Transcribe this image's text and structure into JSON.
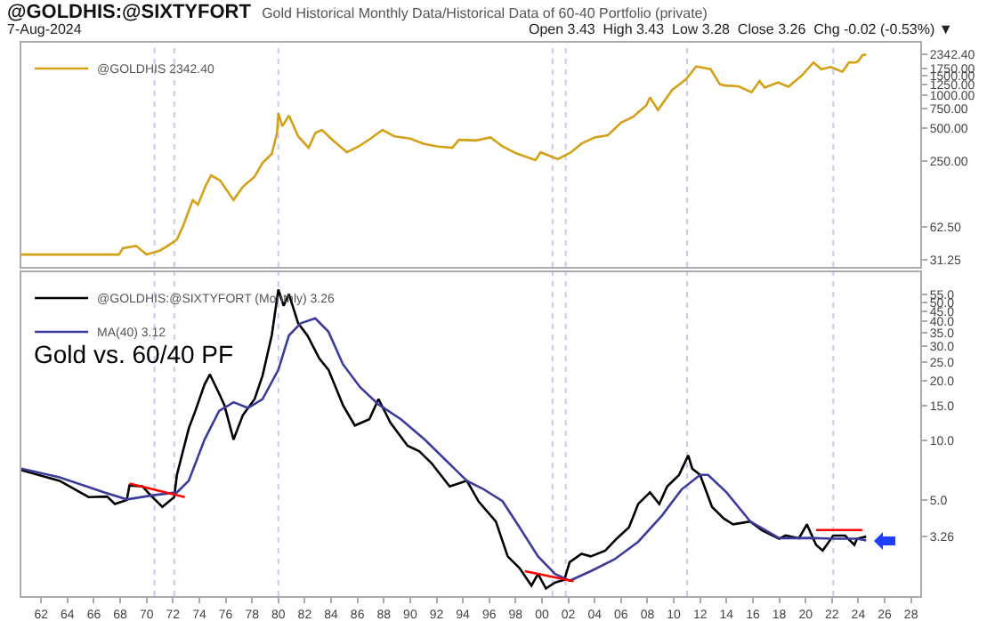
{
  "chart_data": [
    {
      "type": "line",
      "title": "@GOLDHIS:@SIXTYFORT",
      "subtitle": "Gold Historical Monthly Data/Historical Data of 60-40 Portfolio (private)",
      "annotations": [
        "7-Aug-2024",
        "Open 3.43  High 3.43  Low 3.28  Close 3.26  Chg -0.02 (-0.53%) ▼"
      ],
      "log": "y",
      "legend": "top left",
      "tick_labels": "y",
      "xlim": [
        1960.5,
        2028.7
      ],
      "ylim": [
        27,
        3000
      ],
      "yticks": [
        31.25,
        {
          "value": 62.5,
          "label": "62.50"
        },
        {
          "value": 250,
          "label": "250.00"
        },
        {
          "value": 500,
          "label": "500.00"
        },
        {
          "value": 750,
          "label": "750.00"
        },
        {
          "value": 1000,
          "label": "1000.00"
        },
        {
          "value": 1250,
          "label": "1250.00"
        },
        {
          "value": 1500,
          "label": "1500.00"
        },
        {
          "value": 1750,
          "label": "1750.00"
        },
        {
          "value": 2342.4,
          "label": "2342.40"
        }
      ],
      "ref_lines": [
        {
          "axis": "x",
          "value": 1970.6,
          "color": "#c8c8f0",
          "line_style": "dotted"
        },
        {
          "axis": "x",
          "value": 1972.1,
          "color": "#c8c8f0",
          "line_style": "dotted"
        },
        {
          "axis": "x",
          "value": 1980,
          "color": "#c8c8f0",
          "line_style": "dotted"
        },
        {
          "axis": "x",
          "value": 2000.8,
          "color": "#c8c8f0",
          "line_style": "dotted"
        },
        {
          "axis": "x",
          "value": 2001.8,
          "color": "#c8c8f0",
          "line_style": "dotted"
        },
        {
          "axis": "x",
          "value": 2011,
          "color": "#c8c8f0",
          "line_style": "dotted"
        },
        {
          "axis": "x",
          "value": 2022.1,
          "color": "#c8c8f0",
          "line_style": "dotted"
        }
      ],
      "series": [
        {
          "name": "@GOLDHIS 2342.40",
          "color": "#d4a017",
          "x": [
            1960.5,
            1967.9,
            1968.2,
            1969.2,
            1970.0,
            1971.0,
            1971.6,
            1972.3,
            1972.8,
            1973.5,
            1973.9,
            1974.5,
            1974.9,
            1975.6,
            1976.6,
            1977.3,
            1978.2,
            1978.8,
            1979.5,
            1979.9,
            1980.0,
            1980.3,
            1980.8,
            1981.5,
            1982.3,
            1982.8,
            1983.3,
            1984.2,
            1985.2,
            1986.1,
            1987.0,
            1987.9,
            1988.8,
            1990.0,
            1991.0,
            1992.0,
            1993.2,
            1993.7,
            1995.0,
            1996.1,
            1997.0,
            1998.0,
            1999.5,
            1999.9,
            2001.2,
            2002.2,
            2003.0,
            2004.0,
            2005.0,
            2006.0,
            2006.9,
            2007.9,
            2008.2,
            2008.8,
            2009.9,
            2010.9,
            2011.7,
            2012.8,
            2013.5,
            2013.9,
            2014.9,
            2015.9,
            2016.5,
            2016.9,
            2017.9,
            2018.7,
            2019.7,
            2020.6,
            2021.2,
            2021.9,
            2022.8,
            2023.3,
            2023.8,
            2024.0,
            2024.3,
            2024.6
          ],
          "values": [
            35,
            35,
            40,
            42,
            35,
            38,
            42,
            48,
            65,
            110,
            100,
            150,
            185,
            165,
            110,
            145,
            180,
            240,
            290,
            450,
            680,
            520,
            650,
            420,
            330,
            450,
            480,
            380,
            300,
            340,
            400,
            480,
            420,
            400,
            360,
            340,
            330,
            390,
            385,
            410,
            340,
            295,
            255,
            300,
            260,
            300,
            360,
            410,
            430,
            560,
            630,
            800,
            950,
            730,
            1120,
            1380,
            1820,
            1720,
            1250,
            1220,
            1200,
            1060,
            1340,
            1170,
            1300,
            1190,
            1500,
            1980,
            1720,
            1800,
            1630,
            1990,
            1980,
            2040,
            2300,
            2342.4
          ]
        }
      ]
    },
    {
      "type": "line",
      "annotations": [
        "Gold vs. 60/40 PF"
      ],
      "log": "y",
      "legend": "top left",
      "xlim": [
        1960.5,
        2028.7
      ],
      "ylim": [
        1.63,
        71
      ],
      "xticks": [
        {
          "value": 1962,
          "label": "62"
        },
        {
          "value": 1964,
          "label": "64"
        },
        {
          "value": 1966,
          "label": "66"
        },
        {
          "value": 1968,
          "label": "68"
        },
        {
          "value": 1970,
          "label": "70"
        },
        {
          "value": 1972,
          "label": "72"
        },
        {
          "value": 1974,
          "label": "74"
        },
        {
          "value": 1976,
          "label": "76"
        },
        {
          "value": 1978,
          "label": "78"
        },
        {
          "value": 1980,
          "label": "80"
        },
        {
          "value": 1982,
          "label": "82"
        },
        {
          "value": 1984,
          "label": "84"
        },
        {
          "value": 1986,
          "label": "86"
        },
        {
          "value": 1988,
          "label": "88"
        },
        {
          "value": 1990,
          "label": "90"
        },
        {
          "value": 1992,
          "label": "92"
        },
        {
          "value": 1994,
          "label": "94"
        },
        {
          "value": 1996,
          "label": "96"
        },
        {
          "value": 1998,
          "label": "98"
        },
        {
          "value": 2000,
          "label": "00"
        },
        {
          "value": 2002,
          "label": "02"
        },
        {
          "value": 2004,
          "label": "04"
        },
        {
          "value": 2006,
          "label": "06"
        },
        {
          "value": 2008,
          "label": "08"
        },
        {
          "value": 2010,
          "label": "10"
        },
        {
          "value": 2012,
          "label": "12"
        },
        {
          "value": 2014,
          "label": "14"
        },
        {
          "value": 2016,
          "label": "16"
        },
        {
          "value": 2018,
          "label": "18"
        },
        {
          "value": 2020,
          "label": "20"
        },
        {
          "value": 2022,
          "label": "22"
        },
        {
          "value": 2024,
          "label": "24"
        },
        {
          "value": 2026,
          "label": "26"
        },
        {
          "value": 2028,
          "label": "28"
        }
      ],
      "yticks": [
        {
          "value": 3.26,
          "label": "3.26"
        },
        {
          "value": 5,
          "label": "5.0"
        },
        {
          "value": 10,
          "label": "10.0"
        },
        {
          "value": 15,
          "label": "15.0"
        },
        {
          "value": 20,
          "label": "20.0"
        },
        {
          "value": 25,
          "label": "25.0"
        },
        {
          "value": 30,
          "label": "30.0"
        },
        {
          "value": 35,
          "label": "35.0"
        },
        {
          "value": 40,
          "label": "40.0"
        },
        {
          "value": 45,
          "label": "45.0"
        },
        {
          "value": 50,
          "label": "50.0"
        },
        {
          "value": 55,
          "label": "55.0"
        }
      ],
      "ref_lines": [
        {
          "axis": "x",
          "value": 1970.6,
          "color": "#c8c8f0",
          "line_style": "dotted"
        },
        {
          "axis": "x",
          "value": 1972.1,
          "color": "#c8c8f0",
          "line_style": "dotted"
        },
        {
          "axis": "x",
          "value": 1980,
          "color": "#c8c8f0",
          "line_style": "dotted"
        },
        {
          "axis": "x",
          "value": 2000.8,
          "color": "#c8c8f0",
          "line_style": "dotted"
        },
        {
          "axis": "x",
          "value": 2001.8,
          "color": "#c8c8f0",
          "line_style": "dotted"
        },
        {
          "axis": "x",
          "value": 2011,
          "color": "#c8c8f0",
          "line_style": "dotted"
        },
        {
          "axis": "x",
          "value": 2022.1,
          "color": "#c8c8f0",
          "line_style": "dotted"
        }
      ],
      "series": [
        {
          "name": "@GOLDHIS:@SIXTYFORT (Monthly) 3.26",
          "color": "#000000",
          "x": [
            1960.5,
            1963.4,
            1965.6,
            1967.0,
            1967.6,
            1968.5,
            1968.7,
            1969.7,
            1970.3,
            1971.2,
            1972.1,
            1972.3,
            1973.2,
            1973.7,
            1974.4,
            1974.8,
            1975.5,
            1975.9,
            1976.6,
            1977.3,
            1978.2,
            1978.8,
            1979.5,
            1980.0,
            1980.4,
            1980.8,
            1981.5,
            1982.2,
            1983.1,
            1983.8,
            1984.9,
            1985.8,
            1986.9,
            1987.6,
            1988.5,
            1989.8,
            1990.7,
            1991.6,
            1993.0,
            1994.3,
            1995.2,
            1996.5,
            1997.4,
            1998.3,
            1999.2,
            1999.7,
            2000.3,
            2001.0,
            2001.7,
            2002.1,
            2003.0,
            2003.7,
            2004.8,
            2005.7,
            2006.6,
            2007.3,
            2008.2,
            2008.9,
            2009.5,
            2010.4,
            2011.1,
            2011.4,
            2012.0,
            2012.9,
            2013.8,
            2014.5,
            2015.8,
            2016.7,
            2018.0,
            2018.5,
            2019.5,
            2020.1,
            2020.8,
            2021.3,
            2022.1,
            2023.0,
            2023.7,
            2023.9,
            2024.6
          ],
          "values": [
            7.07,
            6.25,
            5.17,
            5.2,
            4.77,
            5.0,
            5.92,
            5.85,
            5.28,
            4.61,
            5.17,
            6.69,
            11.5,
            14.1,
            19.2,
            21.6,
            17.3,
            15.1,
            10.1,
            13.4,
            16.2,
            21.3,
            34.1,
            58,
            48,
            55,
            39.2,
            34,
            26,
            22.8,
            15.1,
            11.9,
            12.8,
            16.2,
            12.3,
            9.4,
            8.8,
            7.7,
            5.85,
            6.25,
            4.9,
            3.89,
            2.59,
            2.26,
            1.84,
            2.11,
            1.78,
            1.91,
            1.97,
            2.42,
            2.67,
            2.59,
            2.77,
            3.2,
            3.63,
            4.77,
            5.46,
            4.77,
            5.85,
            6.69,
            8.4,
            7.2,
            6.69,
            4.61,
            4.02,
            3.76,
            3.89,
            3.51,
            3.18,
            3.3,
            3.2,
            3.76,
            2.96,
            2.77,
            3.3,
            3.3,
            2.96,
            3.18,
            3.26
          ]
        },
        {
          "name": "MA(40) 3.12",
          "color": "#3b3b9c",
          "x": [
            1960.5,
            1963.4,
            1966.8,
            1968.5,
            1970.5,
            1972.3,
            1973.2,
            1974.4,
            1975.5,
            1976.6,
            1977.7,
            1978.8,
            1980.0,
            1980.8,
            1981.7,
            1982.8,
            1983.8,
            1984.9,
            1986.2,
            1987.6,
            1989.3,
            1991.1,
            1994.3,
            1995.5,
            1997.0,
            1998.3,
            1999.7,
            2001.0,
            2002.1,
            2003.7,
            2005.5,
            2007.3,
            2009.1,
            2010.6,
            2012.0,
            2012.6,
            2014.0,
            2015.8,
            2018.0,
            2020.3,
            2022.1,
            2023.9,
            2024.6
          ],
          "values": [
            7.2,
            6.5,
            5.46,
            5.03,
            5.28,
            5.46,
            6.25,
            10.1,
            14.1,
            15.6,
            14.6,
            16.2,
            22.8,
            34,
            39.2,
            41.5,
            35.5,
            24.3,
            18.6,
            15.2,
            12.8,
            10.1,
            6.25,
            5.7,
            4.93,
            3.63,
            2.59,
            2.11,
            1.95,
            2.18,
            2.5,
            3.07,
            4.16,
            5.65,
            6.69,
            6.69,
            5.46,
            3.89,
            3.2,
            3.21,
            3.18,
            3.18,
            3.12
          ]
        },
        {
          "type": "line",
          "color": "#ff0000",
          "x": [
            1968.7,
            1972.9
          ],
          "values": [
            6.05,
            5.17
          ]
        },
        {
          "type": "line",
          "color": "#ff0000",
          "x": [
            1998.7,
            2002.4
          ],
          "values": [
            2.18,
            1.94
          ]
        },
        {
          "type": "line",
          "color": "#ff0000",
          "x": [
            2020.8,
            2024.3
          ],
          "values": [
            3.52,
            3.52
          ]
        }
      ]
    }
  ]
}
